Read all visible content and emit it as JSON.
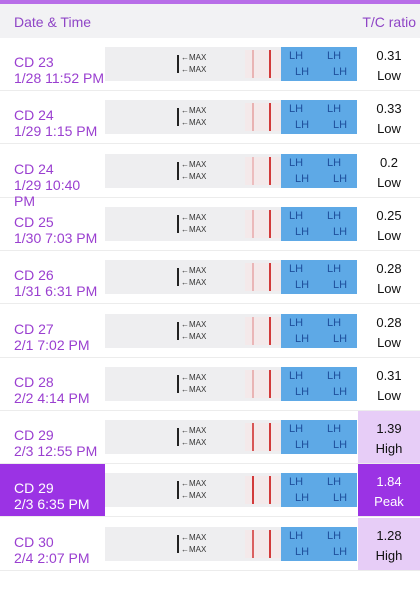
{
  "header": {
    "date_col": "Date & Time",
    "ratio_col": "T/C ratio"
  },
  "strip": {
    "max_label": "←MAX",
    "brand_label": "LH"
  },
  "rows": [
    {
      "cd": "CD 23",
      "datetime": "1/28 11:52 PM",
      "ratio": "0.31",
      "level": "Low",
      "selected": false
    },
    {
      "cd": "CD 24",
      "datetime": "1/29 1:15 PM",
      "ratio": "0.33",
      "level": "Low",
      "selected": false
    },
    {
      "cd": "CD 24",
      "datetime": "1/29 10:40 PM",
      "ratio": "0.2",
      "level": "Low",
      "selected": false
    },
    {
      "cd": "CD 25",
      "datetime": "1/30 7:03 PM",
      "ratio": "0.25",
      "level": "Low",
      "selected": false
    },
    {
      "cd": "CD 26",
      "datetime": "1/31 6:31 PM",
      "ratio": "0.28",
      "level": "Low",
      "selected": false
    },
    {
      "cd": "CD 27",
      "datetime": "2/1 7:02 PM",
      "ratio": "0.28",
      "level": "Low",
      "selected": false
    },
    {
      "cd": "CD 28",
      "datetime": "2/2 4:14 PM",
      "ratio": "0.31",
      "level": "Low",
      "selected": false
    },
    {
      "cd": "CD 29",
      "datetime": "2/3 12:55 PM",
      "ratio": "1.39",
      "level": "High",
      "selected": false
    },
    {
      "cd": "CD 29",
      "datetime": "2/3 6:35 PM",
      "ratio": "1.84",
      "level": "Peak",
      "selected": true
    },
    {
      "cd": "CD 30",
      "datetime": "2/4 2:07 PM",
      "ratio": "1.28",
      "level": "High",
      "selected": false
    }
  ]
}
